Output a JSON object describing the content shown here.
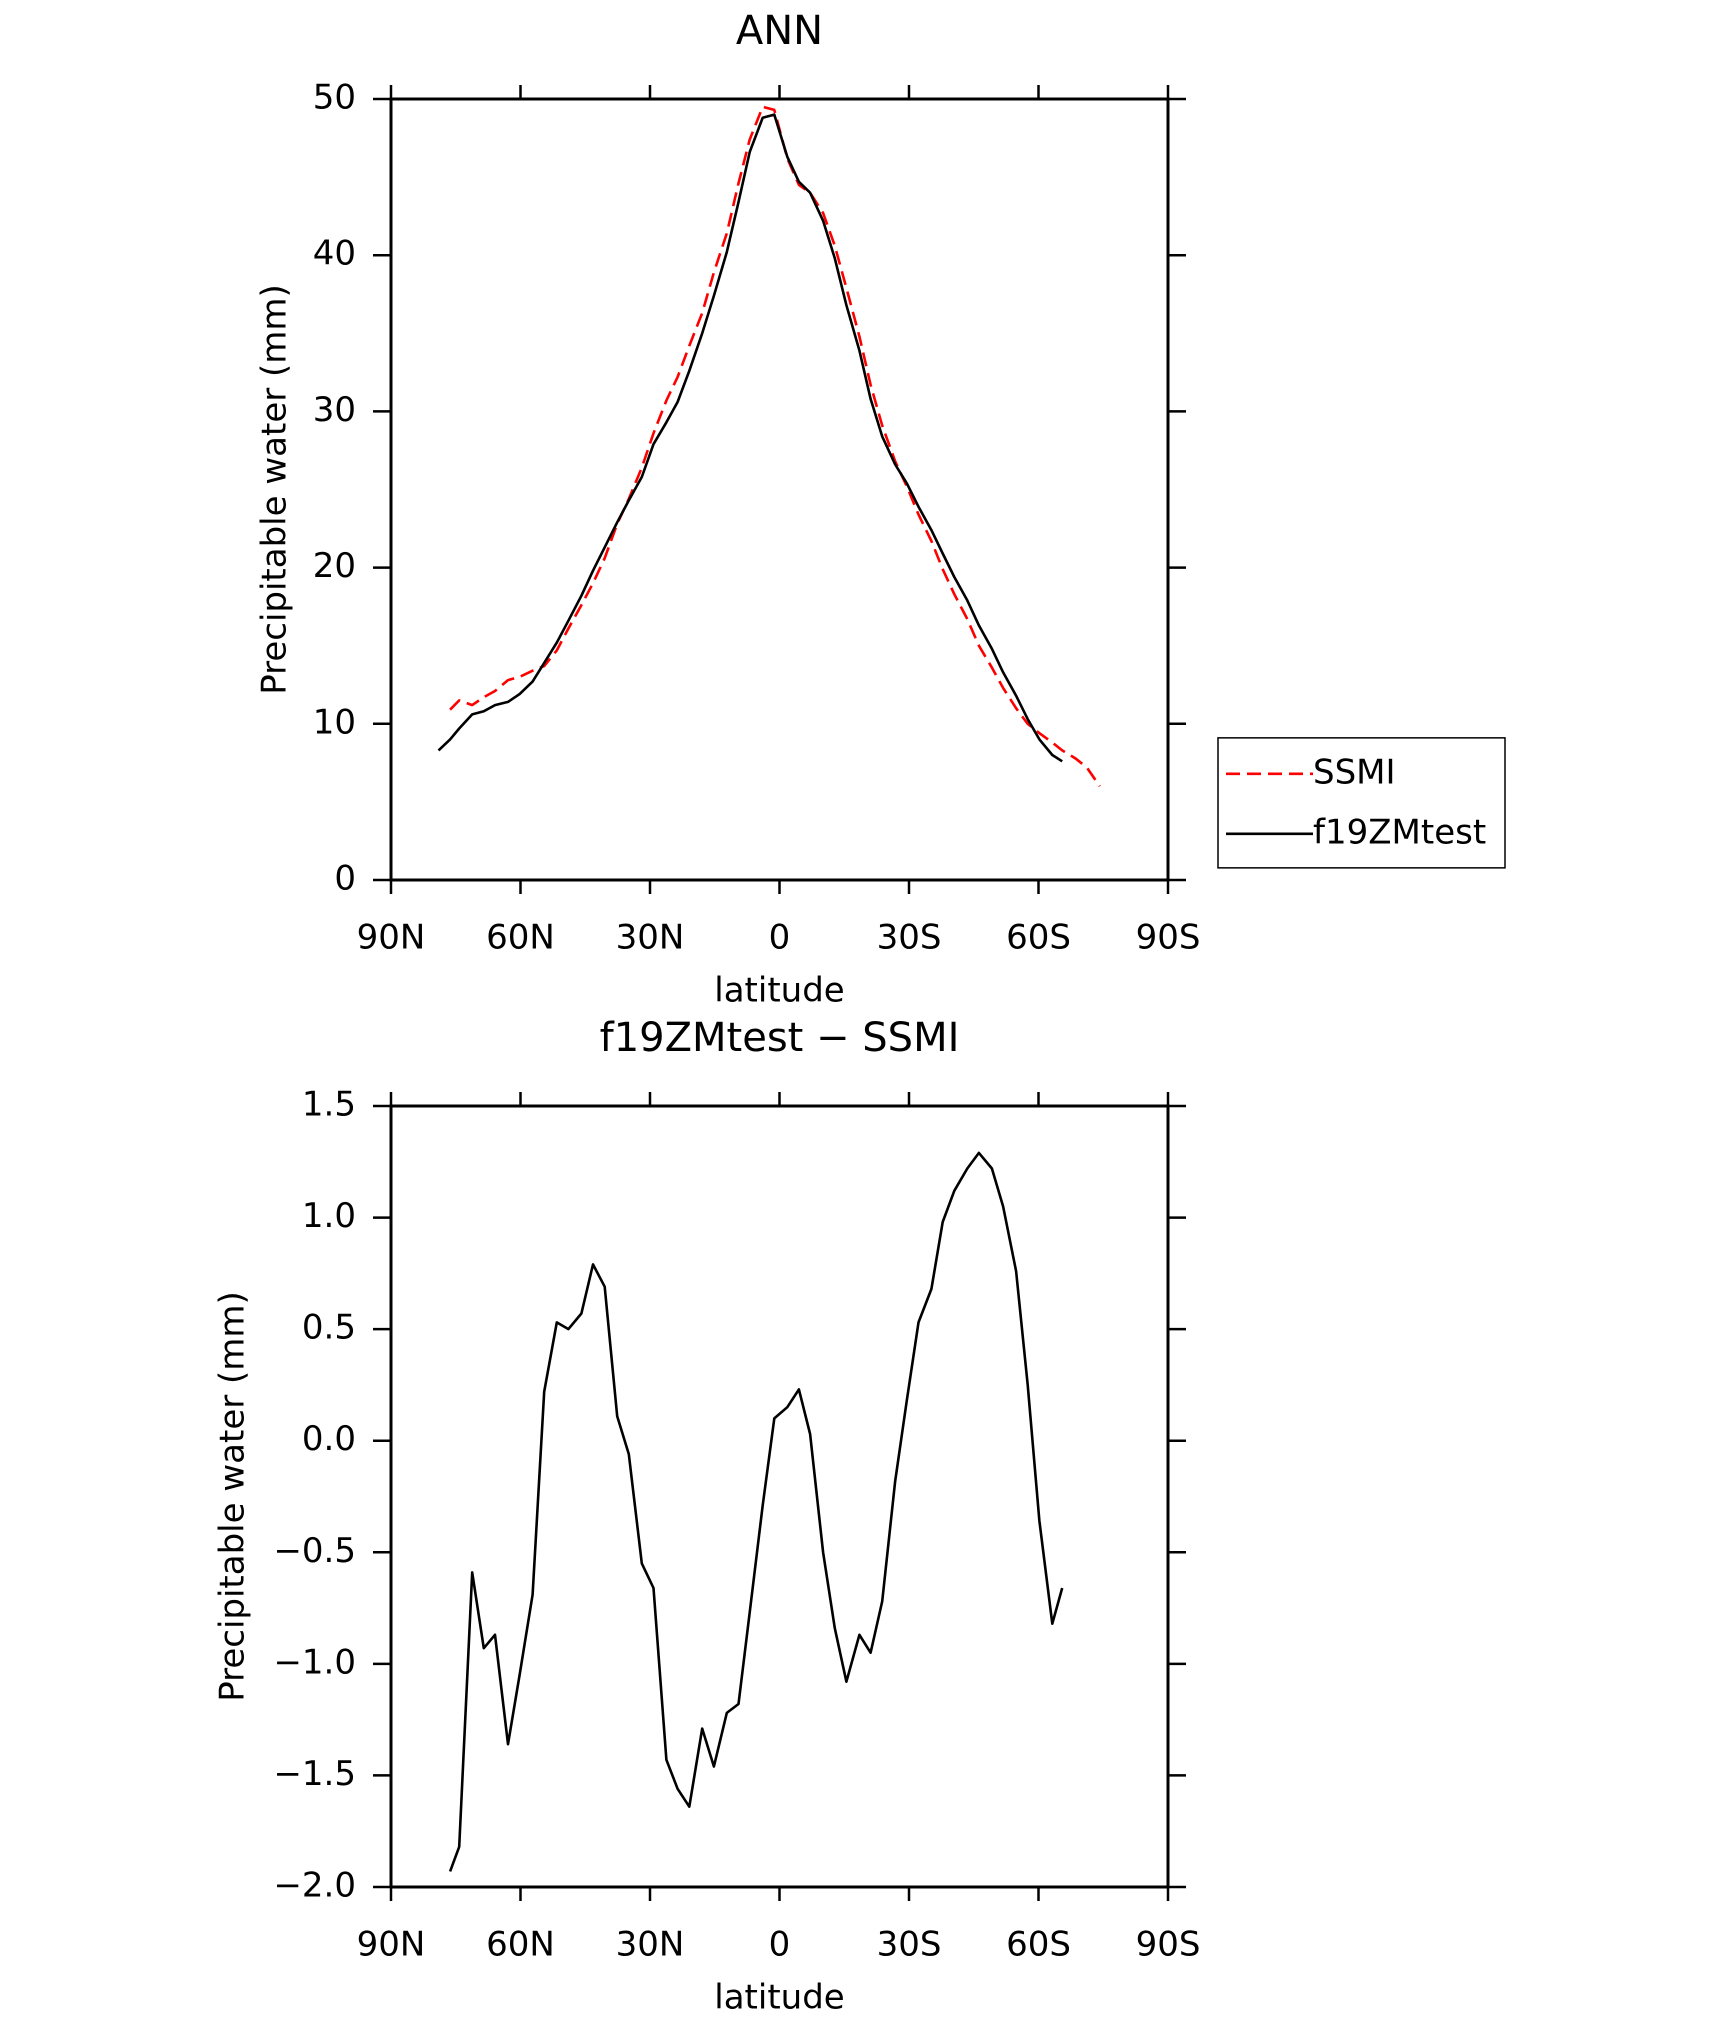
{
  "chart_data": [
    {
      "type": "line",
      "title": "ANN",
      "x_label": "latitude",
      "y_label": "Precipitable water (mm)",
      "x": [
        79.0,
        76.3,
        74.2,
        71.2,
        68.5,
        65.9,
        62.9,
        60.2,
        57.2,
        54.5,
        51.6,
        48.9,
        45.9,
        43.2,
        40.5,
        37.6,
        34.9,
        31.9,
        29.2,
        26.2,
        23.6,
        20.9,
        17.9,
        15.2,
        12.2,
        9.5,
        6.9,
        3.9,
        1.2,
        -1.8,
        -4.5,
        -7.1,
        -10.1,
        -12.8,
        -15.5,
        -18.5,
        -21.1,
        -23.8,
        -26.8,
        -29.5,
        -32.2,
        -35.2,
        -37.8,
        -40.5,
        -43.5,
        -46.2,
        -49.2,
        -51.8,
        -54.8,
        -57.5,
        -60.2,
        -63.2,
        -65.5,
        -68.5,
        -71.2,
        -74.2
      ],
      "series": [
        {
          "name": "SSMI",
          "color": "#ff0000",
          "dashed": true,
          "values": [
            null,
            10.9,
            11.5,
            11.2,
            11.7,
            12.1,
            12.8,
            13.0,
            13.4,
            13.7,
            14.7,
            16.1,
            17.6,
            19.0,
            20.6,
            22.8,
            24.4,
            26.4,
            28.6,
            30.7,
            32.2,
            34.2,
            36.3,
            38.9,
            41.4,
            44.6,
            47.4,
            49.5,
            49.3,
            46.2,
            44.5,
            44.0,
            42.7,
            40.6,
            37.9,
            34.8,
            31.7,
            29.1,
            26.8,
            25.2,
            23.4,
            21.7,
            19.9,
            18.3,
            16.7,
            15.0,
            13.6,
            12.3,
            11.0,
            10.0,
            9.4,
            8.8,
            8.3,
            7.8,
            7.2,
            6.0
          ]
        },
        {
          "name": "f19ZMtest",
          "color": "#000000",
          "dashed": false,
          "values": [
            8.3,
            9.0,
            9.7,
            10.6,
            10.8,
            11.2,
            11.4,
            11.9,
            12.7,
            13.9,
            15.2,
            16.6,
            18.2,
            19.8,
            21.3,
            22.9,
            24.3,
            25.8,
            27.9,
            29.3,
            30.6,
            32.6,
            35.0,
            37.4,
            40.2,
            43.4,
            46.6,
            48.8,
            49.0,
            46.3,
            44.7,
            44.0,
            42.2,
            39.8,
            36.8,
            33.9,
            30.8,
            28.4,
            26.6,
            25.4,
            23.9,
            22.4,
            20.9,
            19.4,
            17.9,
            16.3,
            14.8,
            13.3,
            11.8,
            10.3,
            9.0,
            8.0,
            7.6,
            null,
            null,
            null
          ]
        }
      ],
      "xlim": [
        90,
        -90
      ],
      "xticks": [
        {
          "value": 90,
          "label": "90N"
        },
        {
          "value": 60,
          "label": "60N"
        },
        {
          "value": 30,
          "label": "30N"
        },
        0,
        {
          "value": -30,
          "label": "30S"
        },
        {
          "value": -60,
          "label": "60S"
        },
        {
          "value": -90,
          "label": "90S"
        }
      ],
      "ylim": [
        0,
        50
      ],
      "yticks": [
        0,
        10,
        20,
        30,
        40,
        50
      ],
      "legend": "right"
    },
    {
      "type": "line",
      "title": "f19ZMtest − SSMI",
      "x_label": "latitude",
      "y_label": "Precipitable water (mm)",
      "x": [
        76.3,
        74.2,
        71.2,
        68.5,
        65.9,
        62.9,
        60.2,
        57.2,
        54.5,
        51.6,
        48.9,
        45.9,
        43.2,
        40.5,
        37.6,
        34.9,
        31.9,
        29.2,
        26.2,
        23.6,
        20.9,
        17.9,
        15.2,
        12.2,
        9.5,
        6.9,
        3.9,
        1.2,
        -1.8,
        -4.5,
        -7.1,
        -10.1,
        -12.8,
        -15.5,
        -18.5,
        -21.1,
        -23.8,
        -26.8,
        -29.5,
        -32.2,
        -35.2,
        -37.8,
        -40.5,
        -43.5,
        -46.2,
        -49.2,
        -51.8,
        -54.8,
        -57.5,
        -60.2,
        -63.2,
        -65.5
      ],
      "series": [
        {
          "color": "#000000",
          "dashed": false,
          "values": [
            -1.93,
            -1.82,
            -0.59,
            -0.93,
            -0.87,
            -1.36,
            -1.05,
            -0.69,
            0.22,
            0.53,
            0.5,
            0.57,
            0.79,
            0.69,
            0.11,
            -0.06,
            -0.55,
            -0.66,
            -1.43,
            -1.56,
            -1.64,
            -1.29,
            -1.46,
            -1.22,
            -1.18,
            -0.77,
            -0.29,
            0.1,
            0.15,
            0.23,
            0.03,
            -0.5,
            -0.84,
            -1.08,
            -0.87,
            -0.95,
            -0.72,
            -0.18,
            0.18,
            0.53,
            0.68,
            0.98,
            1.12,
            1.22,
            1.29,
            1.22,
            1.05,
            0.76,
            0.25,
            -0.36,
            -0.82,
            -0.66
          ]
        }
      ],
      "xlim": [
        90,
        -90
      ],
      "xticks": [
        {
          "value": 90,
          "label": "90N"
        },
        {
          "value": 60,
          "label": "60N"
        },
        {
          "value": 30,
          "label": "30N"
        },
        0,
        {
          "value": -30,
          "label": "30S"
        },
        {
          "value": -60,
          "label": "60S"
        },
        {
          "value": -90,
          "label": "90S"
        }
      ],
      "ylim": [
        -2.0,
        1.5
      ],
      "yticks": [
        {
          "value": -2.0,
          "label": "−2.0"
        },
        {
          "value": -1.5,
          "label": "−1.5"
        },
        {
          "value": -1.0,
          "label": "−1.0"
        },
        {
          "value": -0.5,
          "label": "−0.5"
        },
        {
          "value": 0.0,
          "label": "0.0"
        },
        0.5,
        {
          "value": 1.0,
          "label": "1.0"
        },
        1.5
      ]
    }
  ]
}
